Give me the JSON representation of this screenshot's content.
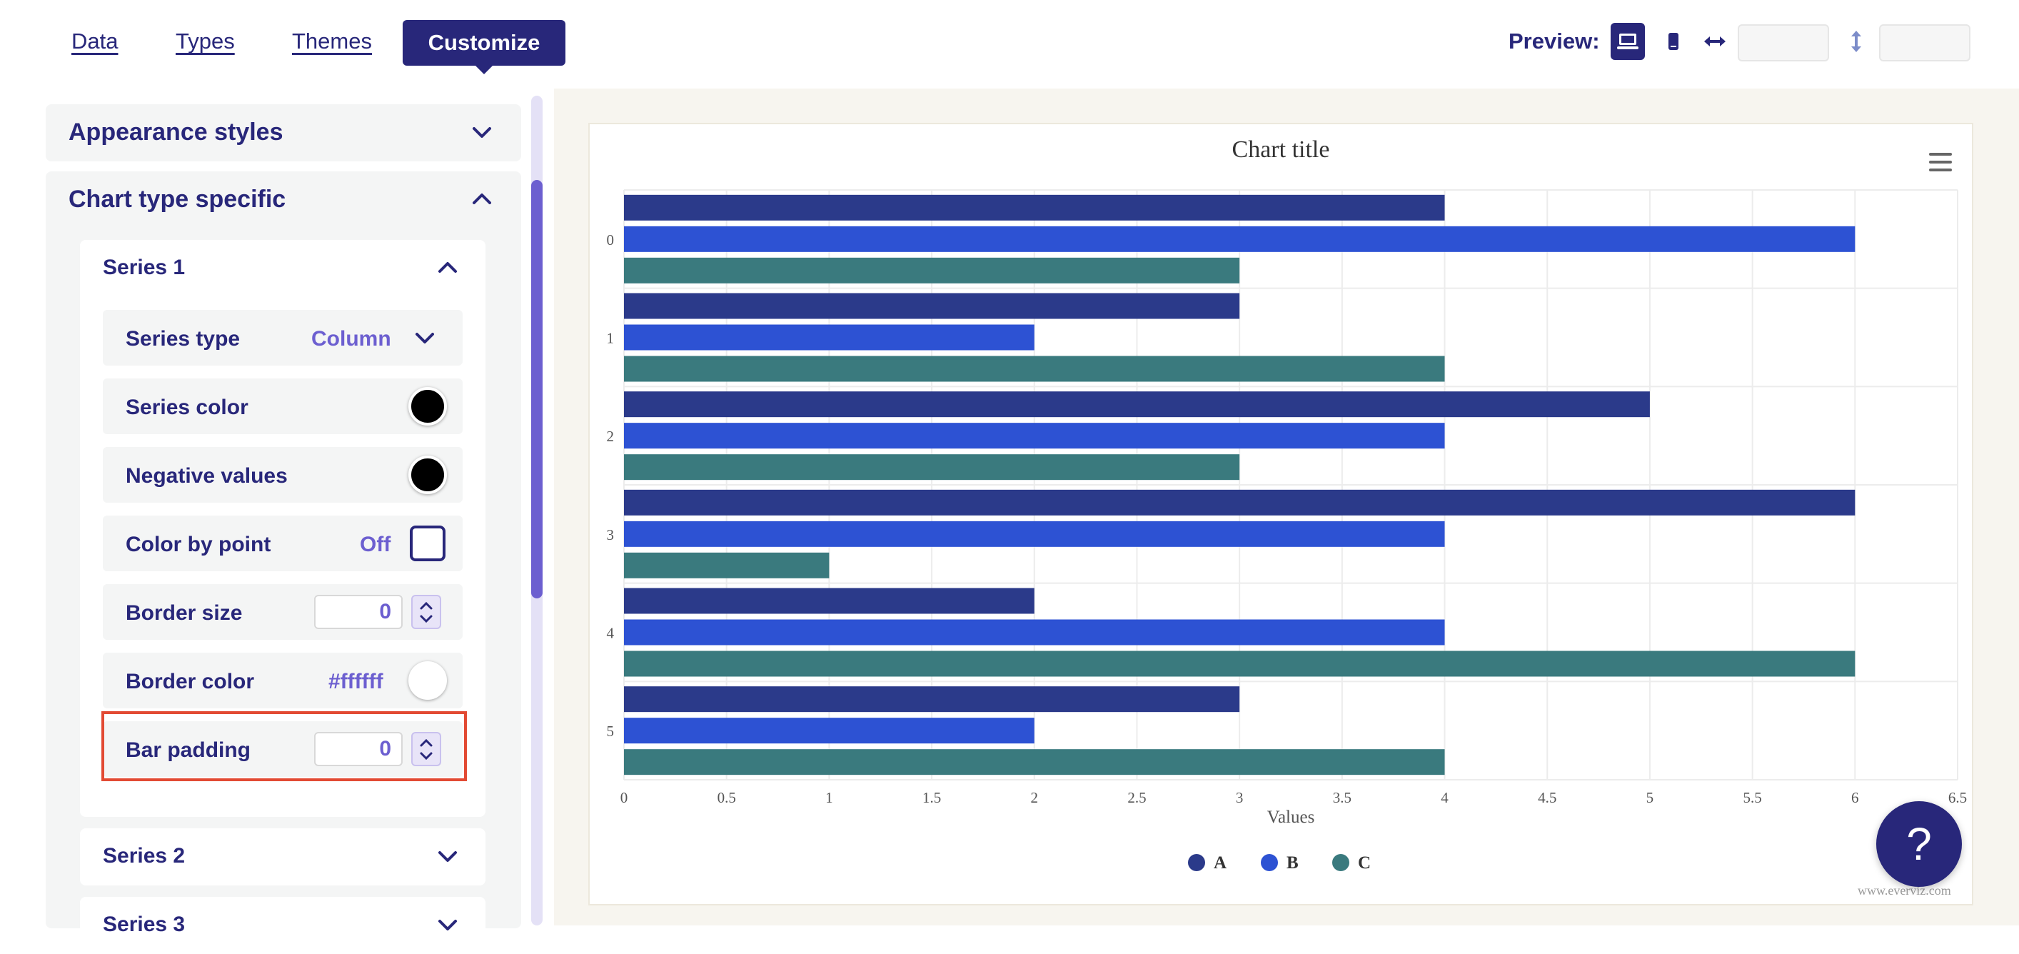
{
  "tabs": [
    {
      "label": "Data"
    },
    {
      "label": "Types"
    },
    {
      "label": "Themes"
    },
    {
      "label": "Customize"
    }
  ],
  "preview": {
    "label": "Preview:"
  },
  "sidebar": {
    "appearance_styles": "Appearance styles",
    "chart_type_specific": "Chart type specific",
    "series1": {
      "title": "Series 1",
      "series_type_label": "Series type",
      "series_type_value": "Column",
      "series_color_label": "Series color",
      "series_color_value": "#000000",
      "negative_values_label": "Negative values",
      "negative_values_color": "#000000",
      "color_by_point_label": "Color by point",
      "color_by_point_value": "Off",
      "border_size_label": "Border size",
      "border_size_value": "0",
      "border_color_label": "Border color",
      "border_color_value": "#ffffff",
      "bar_padding_label": "Bar padding",
      "bar_padding_value": "0"
    },
    "series2": "Series 2",
    "series3": "Series 3"
  },
  "chart_data": {
    "type": "bar",
    "orientation": "horizontal",
    "title": "Chart title",
    "xlabel": "Values",
    "categories": [
      "0",
      "1",
      "2",
      "3",
      "4",
      "5"
    ],
    "series": [
      {
        "name": "A",
        "color": "#2b3a8a",
        "values": [
          4,
          3,
          5,
          6,
          2,
          3
        ]
      },
      {
        "name": "B",
        "color": "#2d52d3",
        "values": [
          6,
          2,
          4,
          4,
          4,
          2
        ]
      },
      {
        "name": "C",
        "color": "#3a7a7e",
        "values": [
          3,
          4,
          3,
          1,
          6,
          4
        ]
      }
    ],
    "xlim": [
      0,
      6.5
    ],
    "ticks": [
      "0",
      "0.5",
      "1",
      "1.5",
      "2",
      "2.5",
      "3",
      "3.5",
      "4",
      "4.5",
      "5",
      "5.5",
      "6",
      "6.5"
    ],
    "grid": true,
    "legend_position": "bottom"
  },
  "credits": "www.everviz.com",
  "help_label": "?"
}
